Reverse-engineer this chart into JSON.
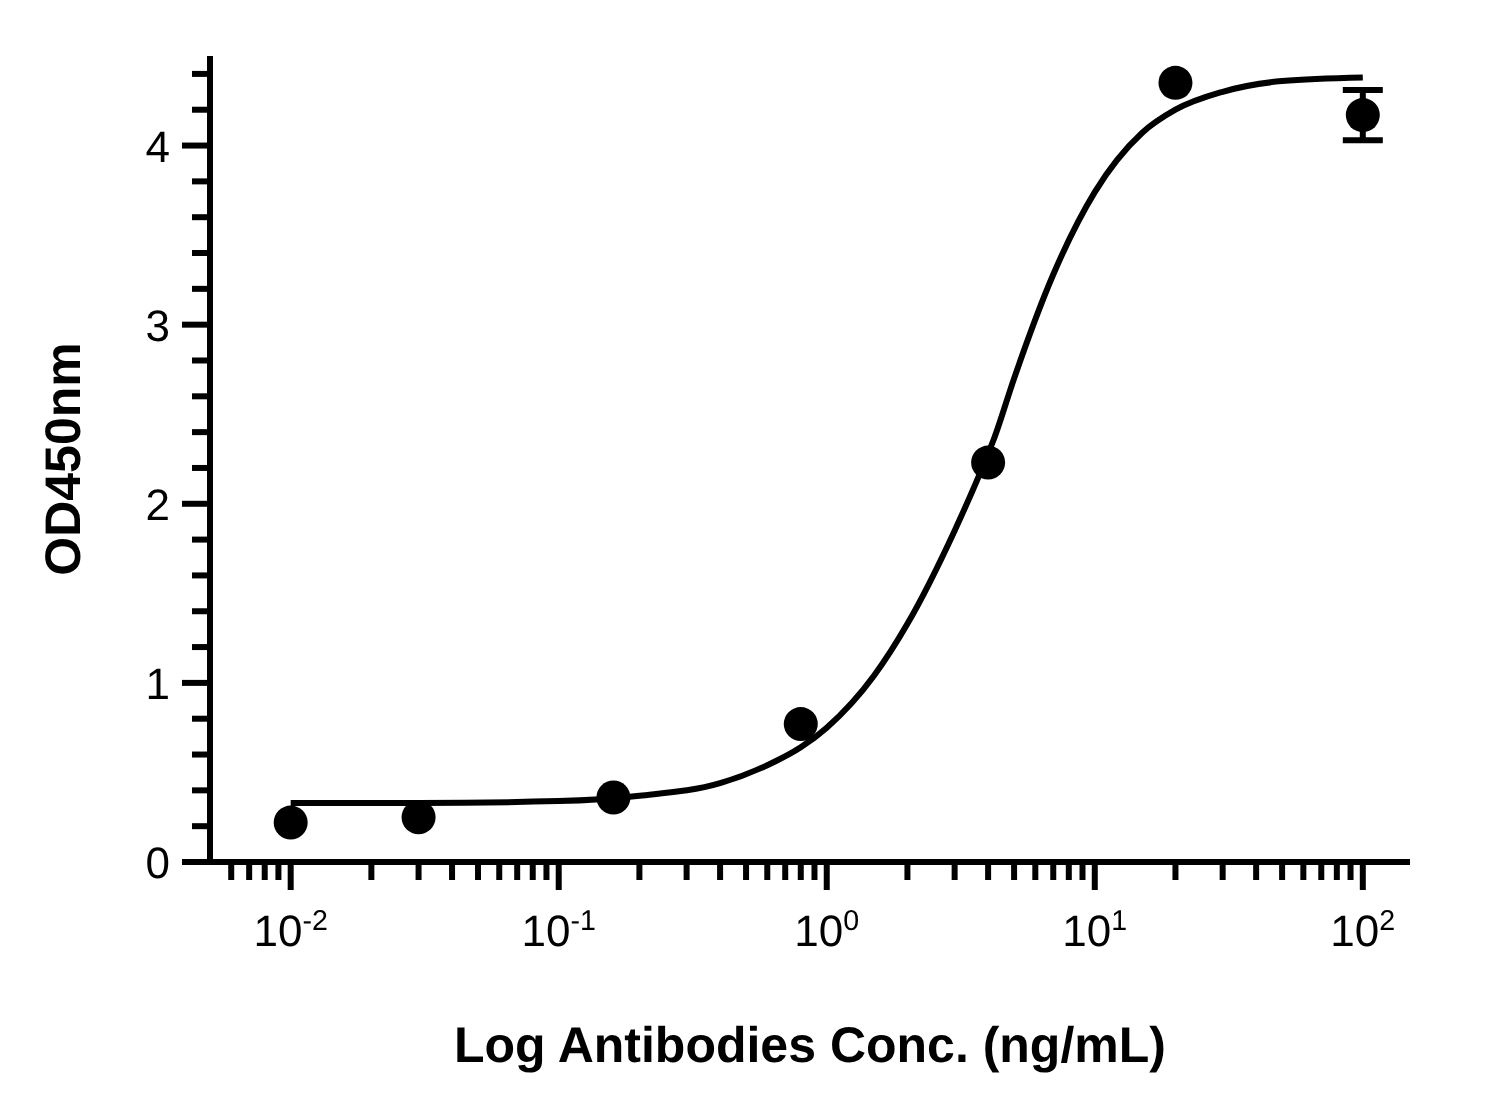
{
  "chart_data": {
    "type": "scatter",
    "xlabel": "Log Antibodies Conc. (ng/mL)",
    "ylabel": "OD450nm",
    "log": "x",
    "xlim": [
      0.005,
      150
    ],
    "ylim": [
      0,
      4.5
    ],
    "xticks": [
      {
        "value": 0.006,
        "label": null
      },
      {
        "value": 0.007,
        "label": null
      },
      {
        "value": 0.008,
        "label": null
      },
      {
        "value": 0.009,
        "label": null
      },
      {
        "value": 0.01,
        "label": "10$^{-2}$"
      },
      {
        "value": 0.02,
        "label": null
      },
      {
        "value": 0.03,
        "label": null
      },
      {
        "value": 0.04,
        "label": null
      },
      {
        "value": 0.05,
        "label": null
      },
      {
        "value": 0.06,
        "label": null
      },
      {
        "value": 0.07,
        "label": null
      },
      {
        "value": 0.08,
        "label": null
      },
      {
        "value": 0.09,
        "label": null
      },
      {
        "value": 0.1,
        "label": "10$^{-1}$"
      },
      {
        "value": 0.2,
        "label": null
      },
      {
        "value": 0.3,
        "label": null
      },
      {
        "value": 0.4,
        "label": null
      },
      {
        "value": 0.5,
        "label": null
      },
      {
        "value": 0.6,
        "label": null
      },
      {
        "value": 0.7,
        "label": null
      },
      {
        "value": 0.8,
        "label": null
      },
      {
        "value": 0.9,
        "label": null
      },
      {
        "value": 1,
        "label": "10$^{0}$"
      },
      {
        "value": 2,
        "label": null
      },
      {
        "value": 3,
        "label": null
      },
      {
        "value": 4,
        "label": null
      },
      {
        "value": 5,
        "label": null
      },
      {
        "value": 6,
        "label": null
      },
      {
        "value": 7,
        "label": null
      },
      {
        "value": 8,
        "label": null
      },
      {
        "value": 9,
        "label": null
      },
      {
        "value": 10,
        "label": "10$^{1}$"
      },
      {
        "value": 20,
        "label": null
      },
      {
        "value": 30,
        "label": null
      },
      {
        "value": 40,
        "label": null
      },
      {
        "value": 50,
        "label": null
      },
      {
        "value": 60,
        "label": null
      },
      {
        "value": 70,
        "label": null
      },
      {
        "value": 80,
        "label": null
      },
      {
        "value": 90,
        "label": null
      },
      {
        "value": 100,
        "label": "10$^{2}$"
      }
    ],
    "yticks": [
      0,
      {
        "value": 0.2,
        "label": null
      },
      {
        "value": 0.4,
        "label": null
      },
      {
        "value": 0.6,
        "label": null
      },
      {
        "value": 0.8,
        "label": null
      },
      1,
      {
        "value": 1.2,
        "label": null
      },
      {
        "value": 1.4,
        "label": null
      },
      {
        "value": 1.6,
        "label": null
      },
      {
        "value": 1.8,
        "label": null
      },
      2,
      {
        "value": 2.2,
        "label": null
      },
      {
        "value": 2.4,
        "label": null
      },
      {
        "value": 2.6,
        "label": null
      },
      {
        "value": 2.8,
        "label": null
      },
      3,
      {
        "value": 3.2,
        "label": null
      },
      {
        "value": 3.4,
        "label": null
      },
      {
        "value": 3.6,
        "label": null
      },
      {
        "value": 3.8,
        "label": null
      },
      4,
      {
        "value": 4.2,
        "label": null
      },
      {
        "value": 4.4,
        "label": null
      }
    ],
    "marker": "circle",
    "series": [
      {
        "color": "#000000",
        "x": [
          0.01,
          0.03,
          0.16,
          0.8,
          4,
          20,
          100
        ],
        "values": [
          0.22,
          0.25,
          0.36,
          0.77,
          2.23,
          4.35,
          4.17
        ],
        "errors": [
          null,
          null,
          null,
          null,
          null,
          null,
          0.14
        ]
      },
      {
        "type": "line",
        "color": "#000000",
        "marker": "none",
        "x": [
          0.01,
          0.03,
          0.1,
          0.2,
          0.4,
          0.6,
          0.8,
          1,
          1.5,
          2,
          3,
          4,
          4.2,
          5,
          7,
          10,
          15,
          20,
          30,
          50,
          100
        ],
        "values": [
          0.33,
          0.33,
          0.34,
          0.37,
          0.44,
          0.54,
          0.64,
          0.75,
          1.04,
          1.33,
          1.85,
          2.28,
          2.36,
          2.7,
          3.28,
          3.74,
          4.07,
          4.2,
          4.3,
          4.36,
          4.38
        ]
      }
    ]
  }
}
